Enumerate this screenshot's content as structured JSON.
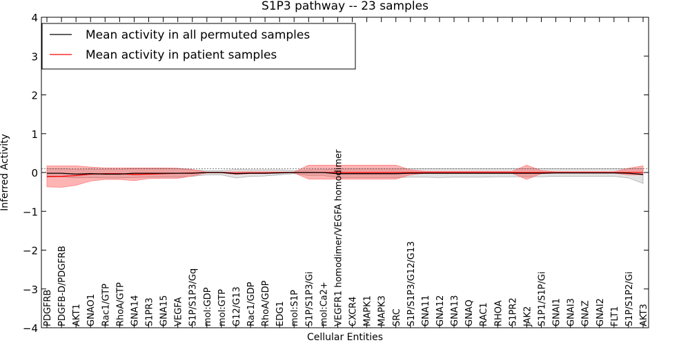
{
  "chart_data": {
    "type": "line",
    "title": "S1P3 pathway -- 23 samples",
    "xlabel": "Cellular Entities",
    "ylabel": "Inferred Activity",
    "ylim": [
      -4,
      4
    ],
    "yticks": [
      "−4",
      "−3",
      "−2",
      "−1",
      "0",
      "1",
      "2",
      "3",
      "4"
    ],
    "legend_position": "top-left",
    "categories": [
      "PDGFRB",
      "PDGFB-D/PDGFRB",
      "AKT1",
      "GNAO1",
      "Rac1/GTP",
      "RhoA/GTP",
      "GNA14",
      "S1PR3",
      "GNA15",
      "VEGFA",
      "S1P/S1P3/Gq",
      "mol:GDP",
      "mol:GTP",
      "G12/G13",
      "Rac1/GDP",
      "RhoA/GDP",
      "EDG1",
      "mol:S1P",
      "S1P/S1P3/Gi",
      "mol:Ca2+",
      "VEGFR1 homodimer/VEGFA homodimer",
      "CXCR4",
      "MAPK1",
      "MAPK3",
      "SRC",
      "S1P/S1P3/G12/G13",
      "GNA11",
      "GNA12",
      "GNA13",
      "GNAQ",
      "RAC1",
      "RHOA",
      "S1PR2",
      "JAK2",
      "S1P1/S1P/Gi",
      "GNAI1",
      "GNAI3",
      "GNAZ",
      "GNAI2",
      "FLT1",
      "S1P/S1P2/Gi",
      "AKT3"
    ],
    "series": [
      {
        "name": "Mean activity in all permuted samples",
        "color": "#000000",
        "values": [
          -0.02,
          -0.02,
          -0.04,
          -0.03,
          -0.04,
          -0.04,
          -0.02,
          -0.02,
          -0.02,
          -0.02,
          -0.02,
          0.0,
          0.0,
          -0.03,
          -0.02,
          -0.02,
          -0.01,
          0.0,
          0.0,
          0.0,
          -0.03,
          -0.03,
          -0.03,
          -0.03,
          -0.03,
          -0.02,
          -0.02,
          -0.02,
          -0.02,
          -0.02,
          -0.02,
          -0.02,
          -0.02,
          -0.02,
          -0.02,
          -0.01,
          -0.01,
          -0.01,
          -0.01,
          -0.01,
          -0.02,
          -0.05
        ],
        "lower": [
          -0.12,
          -0.11,
          -0.14,
          -0.13,
          -0.14,
          -0.14,
          -0.13,
          -0.12,
          -0.12,
          -0.12,
          -0.1,
          -0.06,
          -0.06,
          -0.14,
          -0.1,
          -0.09,
          -0.06,
          -0.03,
          -0.08,
          -0.08,
          -0.13,
          -0.13,
          -0.13,
          -0.13,
          -0.13,
          -0.12,
          -0.12,
          -0.13,
          -0.12,
          -0.12,
          -0.12,
          -0.11,
          -0.11,
          -0.11,
          -0.11,
          -0.1,
          -0.1,
          -0.1,
          -0.1,
          -0.1,
          -0.14,
          -0.28
        ],
        "upper": [
          0.1,
          0.1,
          0.08,
          0.09,
          0.08,
          0.08,
          0.1,
          0.1,
          0.1,
          0.1,
          0.07,
          0.05,
          0.05,
          0.08,
          0.07,
          0.07,
          0.07,
          0.05,
          0.07,
          0.08,
          0.09,
          0.09,
          0.09,
          0.09,
          0.09,
          0.1,
          0.1,
          0.1,
          0.1,
          0.1,
          0.1,
          0.1,
          0.1,
          0.1,
          0.1,
          0.1,
          0.1,
          0.1,
          0.1,
          0.1,
          0.1,
          0.1
        ]
      },
      {
        "name": "Mean activity in patient samples",
        "color": "#ff0000",
        "values": [
          -0.1,
          -0.1,
          -0.08,
          -0.04,
          -0.03,
          -0.03,
          -0.05,
          -0.04,
          -0.03,
          -0.02,
          -0.01,
          0.0,
          0.0,
          -0.02,
          -0.01,
          -0.01,
          0.0,
          0.0,
          0.0,
          0.0,
          0.0,
          0.0,
          0.0,
          0.0,
          0.0,
          0.0,
          0.0,
          0.0,
          0.0,
          0.0,
          0.0,
          0.0,
          0.0,
          0.0,
          0.0,
          0.0,
          0.0,
          0.0,
          0.0,
          0.0,
          0.0,
          0.0
        ],
        "lower": [
          -0.37,
          -0.38,
          -0.33,
          -0.22,
          -0.18,
          -0.18,
          -0.21,
          -0.16,
          -0.15,
          -0.15,
          -0.09,
          -0.01,
          -0.01,
          -0.05,
          -0.03,
          -0.03,
          -0.01,
          -0.01,
          -0.17,
          -0.17,
          -0.17,
          -0.17,
          -0.17,
          -0.17,
          -0.17,
          -0.06,
          -0.02,
          -0.02,
          -0.02,
          -0.02,
          -0.02,
          -0.02,
          -0.02,
          -0.18,
          -0.03,
          -0.02,
          -0.02,
          -0.02,
          -0.02,
          -0.02,
          -0.06,
          -0.06
        ],
        "upper": [
          0.17,
          0.17,
          0.17,
          0.14,
          0.12,
          0.12,
          0.12,
          0.12,
          0.12,
          0.11,
          0.08,
          0.01,
          0.01,
          0.02,
          0.02,
          0.02,
          0.01,
          0.01,
          0.19,
          0.19,
          0.19,
          0.19,
          0.19,
          0.19,
          0.19,
          0.07,
          0.03,
          0.03,
          0.03,
          0.03,
          0.03,
          0.03,
          0.03,
          0.19,
          0.05,
          0.02,
          0.02,
          0.02,
          0.02,
          0.02,
          0.11,
          0.17
        ]
      }
    ],
    "reference_line": 0.1
  }
}
